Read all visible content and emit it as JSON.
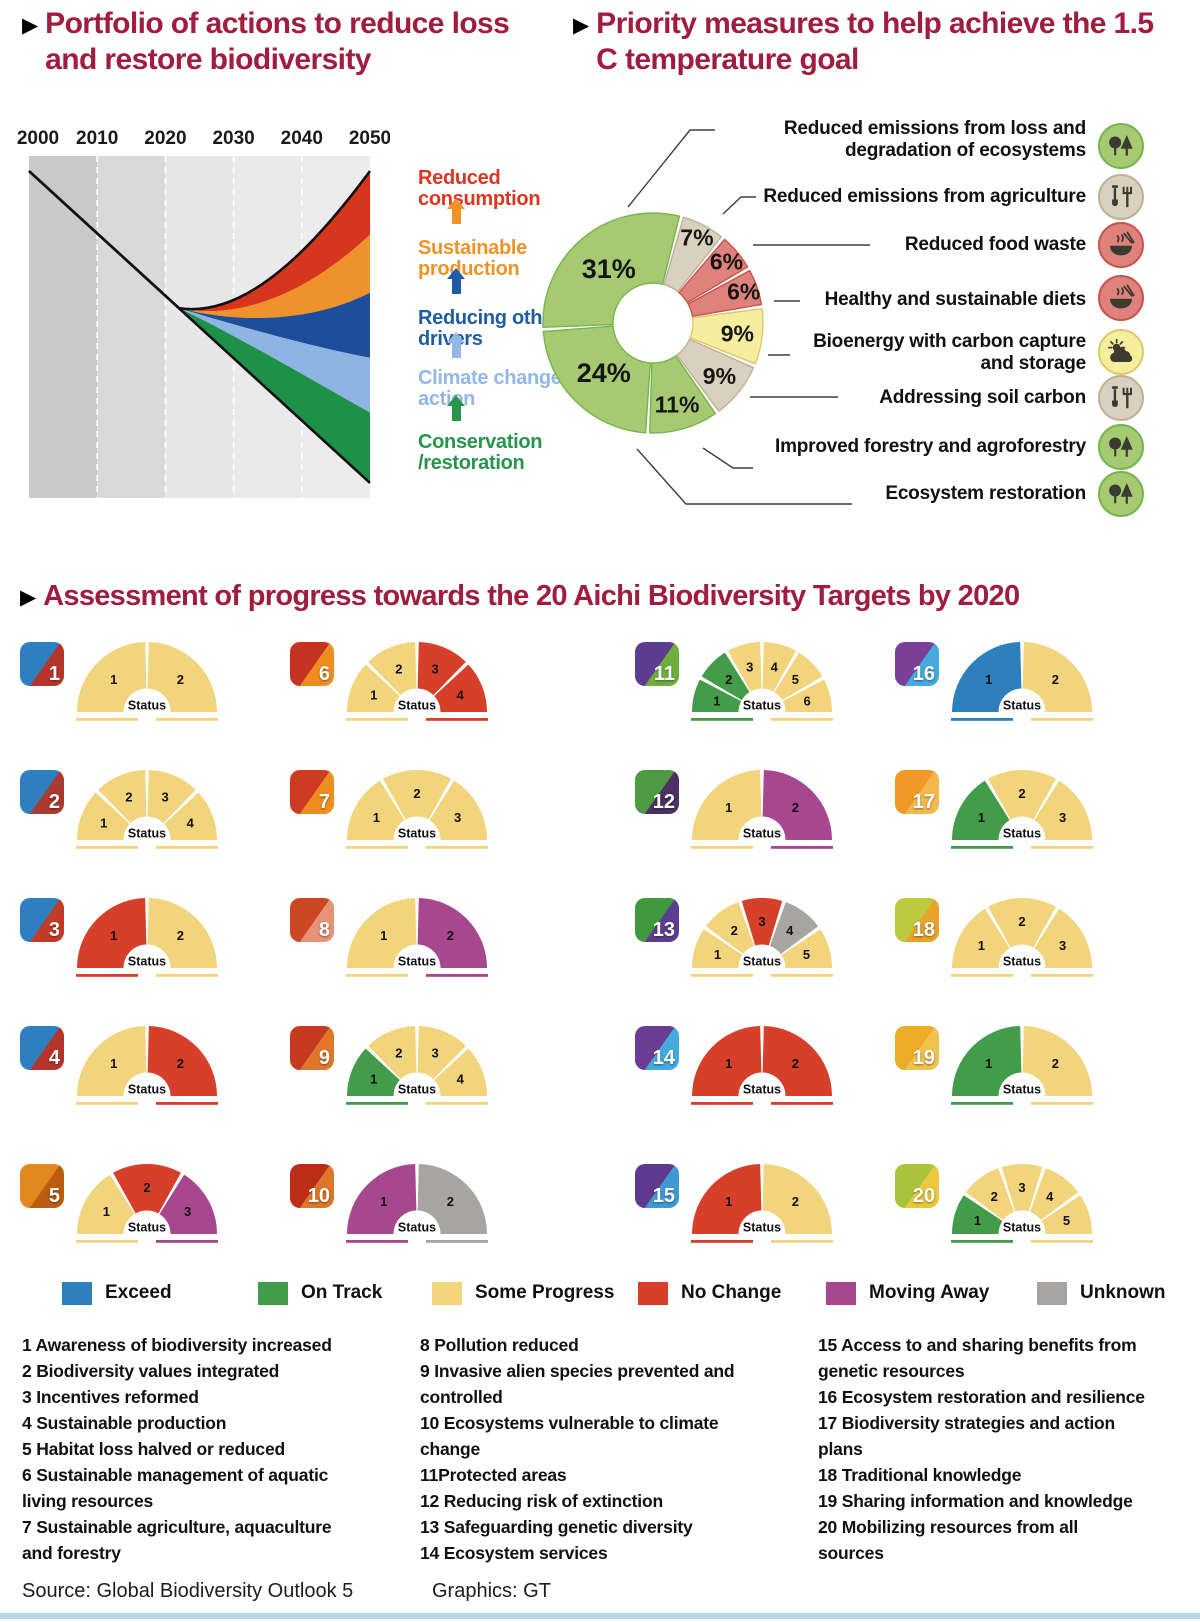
{
  "header": {
    "bullet": "▶",
    "left_title": "Portfolio of actions to reduce loss and restore biodiversity",
    "right_title": "Priority measures to help achieve the 1.5 C temperature goal",
    "title_color": "#a01d40"
  },
  "portfolio": {
    "labels": [
      {
        "text": "Reduced consumption",
        "color": "#d93721"
      },
      {
        "text": "Sustainable production",
        "color": "#f09327"
      },
      {
        "text": "Reducing other drivers",
        "color": "#1f5ca3"
      },
      {
        "text": "Climate change action",
        "color": "#93b8e6"
      },
      {
        "text": "Conservation /restoration",
        "color": "#27964c"
      }
    ]
  },
  "donut": {
    "colors": {
      "green": {
        "fill": "#a6ca71",
        "stroke": "#76b44d"
      },
      "beige": {
        "fill": "#dad0be",
        "stroke": "#bfb096"
      },
      "red": {
        "fill": "#df827c",
        "stroke": "#c7544a"
      },
      "yellow": {
        "fill": "#f6ee9e",
        "stroke": "#dcc967"
      }
    },
    "callouts": [
      {
        "text": "Reduced emissions from loss and\ndegradation of ecosystems",
        "icon": "trees",
        "icon_bg": "green"
      },
      {
        "text": "Reduced emissions from agriculture",
        "icon": "farm-tools",
        "icon_bg": "beige"
      },
      {
        "text": "Reduced food waste",
        "icon": "food-bowl",
        "icon_bg": "red"
      },
      {
        "text": "Healthy and sustainable diets",
        "icon": "food-bowl",
        "icon_bg": "red"
      },
      {
        "text": "Bioenergy with carbon capture\nand storage",
        "icon": "sun-cloud",
        "icon_bg": "yellow"
      },
      {
        "text": "Addressing soil carbon",
        "icon": "farm-tools",
        "icon_bg": "beige"
      },
      {
        "text": "Improved forestry and agroforestry",
        "icon": "trees",
        "icon_bg": "green"
      },
      {
        "text": "Ecosystem restoration",
        "icon": "trees",
        "icon_bg": "green"
      }
    ]
  },
  "assessment": {
    "title": "Assessment of progress towards the 20 Aichi Biodiversity Targets by 2020",
    "status_label": "Status",
    "status_colors": {
      "exceed": "#2e80bd",
      "on-track": "#429c4a",
      "some-progress": "#f2d47c",
      "no-change": "#d6402b",
      "moving-away": "#a6478f",
      "unknown": "#a7a4a1"
    },
    "grid": [
      [
        1,
        6,
        11,
        16
      ],
      [
        2,
        7,
        12,
        17
      ],
      [
        3,
        8,
        13,
        18
      ],
      [
        4,
        9,
        14,
        19
      ],
      [
        5,
        10,
        15,
        20
      ]
    ],
    "tiles": [
      [
        "#2e7fc0",
        "#b5352c"
      ],
      [
        "#2e7fc0",
        "#a93b30"
      ],
      [
        "#2e7fc0",
        "#c23b27"
      ],
      [
        "#2e7fc0",
        "#b5352c"
      ],
      [
        "#e0871e",
        "#bb5c10"
      ],
      [
        "#c53322",
        "#ef8d20"
      ],
      [
        "#cc3b22",
        "#ef8d20"
      ],
      [
        "#cc4824",
        "#e89277"
      ],
      [
        "#c43a20",
        "#e0762a"
      ],
      [
        "#bb2d17",
        "#e0762a"
      ],
      [
        "#5d3d8f",
        "#6fae3e"
      ],
      [
        "#4e9a40",
        "#4c2f63"
      ],
      [
        "#41993f",
        "#5d3d8f"
      ],
      [
        "#6a3d92",
        "#45aadd"
      ],
      [
        "#5d3a8e",
        "#3f9ad4"
      ],
      [
        "#7b3f98",
        "#45aadd"
      ],
      [
        "#ef9929",
        "#f3b94f"
      ],
      [
        "#bdc93e",
        "#e9a32a"
      ],
      [
        "#ecac28",
        "#f0c24e"
      ],
      [
        "#aac33c",
        "#ecc83e"
      ]
    ]
  },
  "legend": [
    {
      "key": "exceed",
      "label": "Exceed"
    },
    {
      "key": "on-track",
      "label": "On Track"
    },
    {
      "key": "some-progress",
      "label": "Some Progress"
    },
    {
      "key": "no-change",
      "label": "No Change"
    },
    {
      "key": "moving-away",
      "label": "Moving Away"
    },
    {
      "key": "unknown",
      "label": "Unknown"
    }
  ],
  "target_list": {
    "columns": [
      [
        "1 Awareness of biodiversity increased",
        "2 Biodiversity values integrated",
        "3 Incentives reformed",
        "4 Sustainable production",
        "5 Habitat loss halved or reduced",
        "6 Sustainable management of aquatic\nliving resources",
        "7 Sustainable agriculture, aquaculture\nand forestry"
      ],
      [
        "8 Pollution reduced",
        "9 Invasive alien species prevented and\ncontrolled",
        "10 Ecosystems vulnerable to climate\nchange",
        "11Protected areas",
        "12 Reducing risk of extinction",
        "13 Safeguarding genetic diversity",
        "14 Ecosystem services"
      ],
      [
        "15 Access to and sharing benefits from\ngenetic resources",
        "16 Ecosystem restoration and resilience",
        "17 Biodiversity strategies and action\nplans",
        "18 Traditional knowledge",
        "19 Sharing information and knowledge",
        "20 Mobilizing resources from all\nsources"
      ]
    ]
  },
  "footer": {
    "source": "Source: Global Biodiversity Outlook 5",
    "graphics": "Graphics: GT"
  },
  "chart_data": [
    {
      "type": "area",
      "title": "Portfolio of actions to reduce loss and restore biodiversity",
      "x_ticks": [
        2000,
        2010,
        2020,
        2030,
        2040,
        2050
      ],
      "xlim": [
        2000,
        2050
      ],
      "ylim": [
        0,
        100
      ],
      "grid": false,
      "decline_line": {
        "from": [
          2000,
          95.6
        ],
        "to": [
          2050,
          4.4
        ]
      },
      "pinch": [
        2022,
        55.5
      ],
      "bands": [
        {
          "name": "Reduced consumption",
          "color": "#d8351f",
          "upper_end": 95.6,
          "c1": [
            2032,
            52.5
          ],
          "c2": [
            2042,
            74
          ]
        },
        {
          "name": "Sustainable production",
          "color": "#f0922b",
          "upper_end": 77,
          "c1": [
            2032,
            51.5
          ],
          "c2": [
            2042,
            62
          ]
        },
        {
          "name": "Reducing other drivers",
          "color": "#1e4d9a",
          "upper_end": 60,
          "c1": [
            2032,
            50.5
          ],
          "c2": [
            2042,
            52
          ]
        },
        {
          "name": "Climate change action",
          "color": "#8fb4e3",
          "upper_end": 41,
          "c1": [
            2031,
            50
          ],
          "c2": [
            2042,
            44
          ]
        },
        {
          "name": "Conservation /restoration",
          "color": "#1e9149",
          "upper_end": 25,
          "c1": [
            2030,
            48
          ],
          "c2": [
            2041,
            35
          ]
        }
      ]
    },
    {
      "type": "pie",
      "subtype": "donut",
      "title": "Priority measures to help achieve the 1.5 C temperature goal",
      "rotation_deg": 15,
      "unit": "%",
      "labels": [
        "Reduced emissions from agriculture",
        "Reduced food waste",
        "Healthy and sustainable diets",
        "Bioenergy with carbon capture and storage",
        "Addressing soil carbon",
        "Improved forestry and agroforestry",
        "Ecosystem restoration",
        "Reduced emissions from loss and degradation of ecosystems"
      ],
      "values": [
        7,
        6,
        6,
        9,
        9,
        11,
        24,
        31
      ],
      "slice_colors": [
        "beige",
        "red",
        "red",
        "yellow",
        "beige",
        "green",
        "green",
        "green"
      ],
      "legend_position": "right-callouts"
    },
    {
      "type": "table",
      "title": "Assessment of progress towards the 20 Aichi Biodiversity Targets by 2020",
      "status_scale": [
        "Exceed",
        "On Track",
        "Some Progress",
        "No Change",
        "Moving Away",
        "Unknown"
      ],
      "rows": [
        {
          "target": 1,
          "statuses": [
            "some-progress",
            "some-progress"
          ]
        },
        {
          "target": 2,
          "statuses": [
            "some-progress",
            "some-progress",
            "some-progress",
            "some-progress"
          ]
        },
        {
          "target": 3,
          "statuses": [
            "no-change",
            "some-progress"
          ]
        },
        {
          "target": 4,
          "statuses": [
            "some-progress",
            "no-change"
          ]
        },
        {
          "target": 5,
          "statuses": [
            "some-progress",
            "no-change",
            "moving-away"
          ]
        },
        {
          "target": 6,
          "statuses": [
            "some-progress",
            "some-progress",
            "no-change",
            "no-change"
          ]
        },
        {
          "target": 7,
          "statuses": [
            "some-progress",
            "some-progress",
            "some-progress"
          ]
        },
        {
          "target": 8,
          "statuses": [
            "some-progress",
            "moving-away"
          ]
        },
        {
          "target": 9,
          "statuses": [
            "on-track",
            "some-progress",
            "some-progress",
            "some-progress"
          ]
        },
        {
          "target": 10,
          "statuses": [
            "moving-away",
            "unknown"
          ]
        },
        {
          "target": 11,
          "statuses": [
            "on-track",
            "on-track",
            "some-progress",
            "some-progress",
            "some-progress",
            "some-progress"
          ]
        },
        {
          "target": 12,
          "statuses": [
            "some-progress",
            "moving-away"
          ]
        },
        {
          "target": 13,
          "statuses": [
            "some-progress",
            "some-progress",
            "no-change",
            "unknown",
            "some-progress"
          ]
        },
        {
          "target": 14,
          "statuses": [
            "no-change",
            "no-change"
          ]
        },
        {
          "target": 15,
          "statuses": [
            "no-change",
            "some-progress"
          ]
        },
        {
          "target": 16,
          "statuses": [
            "exceed",
            "some-progress"
          ]
        },
        {
          "target": 17,
          "statuses": [
            "on-track",
            "some-progress",
            "some-progress"
          ]
        },
        {
          "target": 18,
          "statuses": [
            "some-progress",
            "some-progress",
            "some-progress"
          ]
        },
        {
          "target": 19,
          "statuses": [
            "on-track",
            "some-progress"
          ]
        },
        {
          "target": 20,
          "statuses": [
            "on-track",
            "some-progress",
            "some-progress",
            "some-progress",
            "some-progress"
          ]
        }
      ]
    }
  ]
}
